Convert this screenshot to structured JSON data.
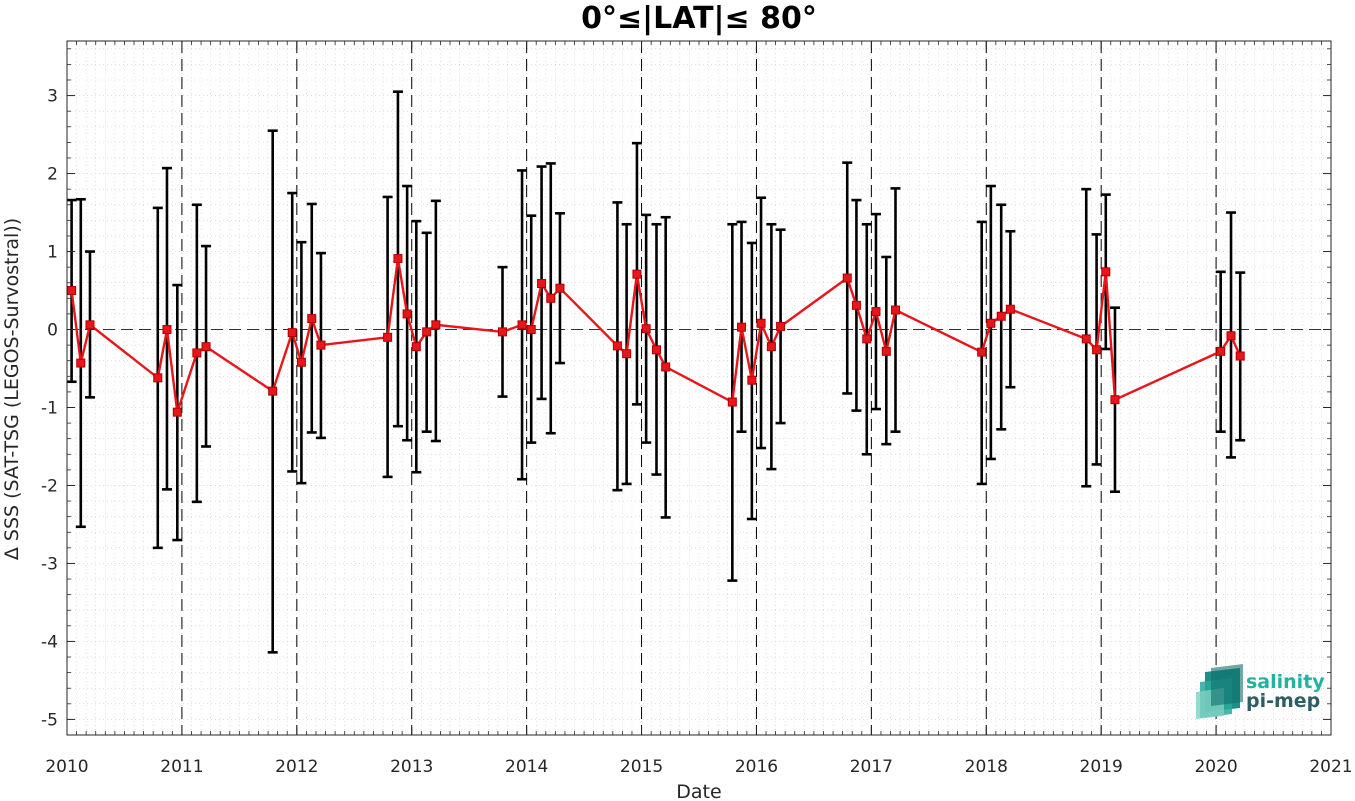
{
  "chart_data": {
    "type": "line",
    "title": "0°≤|LAT|≤ 80°",
    "xlabel": "Date",
    "ylabel": "Δ SSS (SAT-TSG (LEGOS-Survostral))",
    "xlim": [
      2010,
      2021
    ],
    "ylim": [
      -5.2,
      3.7
    ],
    "x_ticks": [
      "2010",
      "2011",
      "2012",
      "2013",
      "2014",
      "2015",
      "2016",
      "2017",
      "2018",
      "2019",
      "2020",
      "2021"
    ],
    "y_ticks": [
      "3",
      "2",
      "1",
      "0",
      "-1",
      "-2",
      "-3",
      "-4",
      "-5"
    ],
    "grid": "minor-dotted",
    "year_boundaries": [
      2011,
      2012,
      2013,
      2014,
      2015,
      2016,
      2017,
      2018,
      2019,
      2020
    ],
    "zero_line": 0,
    "line_color": "#e8161b",
    "errorbar_color": "#000000",
    "series": [
      {
        "x": [
          2010.04,
          2010.12,
          2010.2,
          2010.79,
          2010.87,
          2010.96,
          2011.13,
          2011.21,
          2011.79,
          2011.96,
          2012.04,
          2012.13,
          2012.21,
          2012.79,
          2012.88,
          2012.96,
          2013.04,
          2013.13,
          2013.21,
          2013.79,
          2013.96,
          2014.04,
          2014.13,
          2014.21,
          2014.29,
          2014.79,
          2014.87,
          2014.96,
          2015.04,
          2015.13,
          2015.21,
          2015.79,
          2015.87,
          2015.96,
          2016.04,
          2016.13,
          2016.21,
          2016.79,
          2016.87,
          2016.96,
          2017.04,
          2017.13,
          2017.21,
          2017.96,
          2018.04,
          2018.13,
          2018.21,
          2018.87,
          2018.96,
          2019.04,
          2019.12,
          2020.04,
          2020.13,
          2020.21
        ],
        "y": [
          0.5,
          -0.43,
          0.06,
          -0.62,
          0.0,
          -1.06,
          -0.3,
          -0.22,
          -0.79,
          -0.04,
          -0.42,
          0.14,
          -0.2,
          -0.1,
          0.91,
          0.2,
          -0.22,
          -0.03,
          0.06,
          -0.03,
          0.06,
          0.0,
          0.59,
          0.4,
          0.53,
          -0.21,
          -0.31,
          0.71,
          0.01,
          -0.26,
          -0.48,
          -0.93,
          0.03,
          -0.65,
          0.08,
          -0.22,
          0.04,
          0.66,
          0.31,
          -0.12,
          0.23,
          -0.28,
          0.25,
          -0.29,
          0.08,
          0.17,
          0.26,
          -0.12,
          -0.26,
          0.74,
          -0.9,
          -0.28,
          -0.08,
          -0.34
        ],
        "y_low": [
          -0.67,
          -2.53,
          -0.87,
          -2.8,
          -2.05,
          -2.7,
          -2.21,
          -1.5,
          -4.14,
          -1.82,
          -1.97,
          -1.32,
          -1.39,
          -1.89,
          -1.24,
          -1.42,
          -1.83,
          -1.31,
          -1.43,
          -0.86,
          -1.92,
          -1.45,
          -0.89,
          -1.33,
          -0.43,
          -2.06,
          -1.98,
          -0.96,
          -1.45,
          -1.86,
          -2.41,
          -3.22,
          -1.31,
          -2.43,
          -1.52,
          -1.79,
          -1.2,
          -0.82,
          -1.04,
          -1.6,
          -1.02,
          -1.47,
          -1.31,
          -1.98,
          -1.66,
          -1.28,
          -0.74,
          -2.01,
          -1.73,
          -0.25,
          -2.08,
          -1.31,
          -1.64,
          -1.42
        ],
        "y_high": [
          1.66,
          1.67,
          1.0,
          1.56,
          2.07,
          0.57,
          1.6,
          1.07,
          2.55,
          1.75,
          1.12,
          1.61,
          0.98,
          1.7,
          3.05,
          1.84,
          1.39,
          1.24,
          1.65,
          0.8,
          2.04,
          1.46,
          2.09,
          2.13,
          1.49,
          1.63,
          1.35,
          2.39,
          1.47,
          1.35,
          1.44,
          1.35,
          1.38,
          1.11,
          1.69,
          1.35,
          1.28,
          2.14,
          1.66,
          1.35,
          1.48,
          0.93,
          1.81,
          1.38,
          1.84,
          1.6,
          1.26,
          1.8,
          1.22,
          1.73,
          0.28,
          0.74,
          1.5,
          0.73
        ]
      }
    ]
  },
  "logo": {
    "line1": "salinity",
    "line2": "pi-mep",
    "color1": "#22b3a0",
    "color2": "#2f5d64"
  }
}
